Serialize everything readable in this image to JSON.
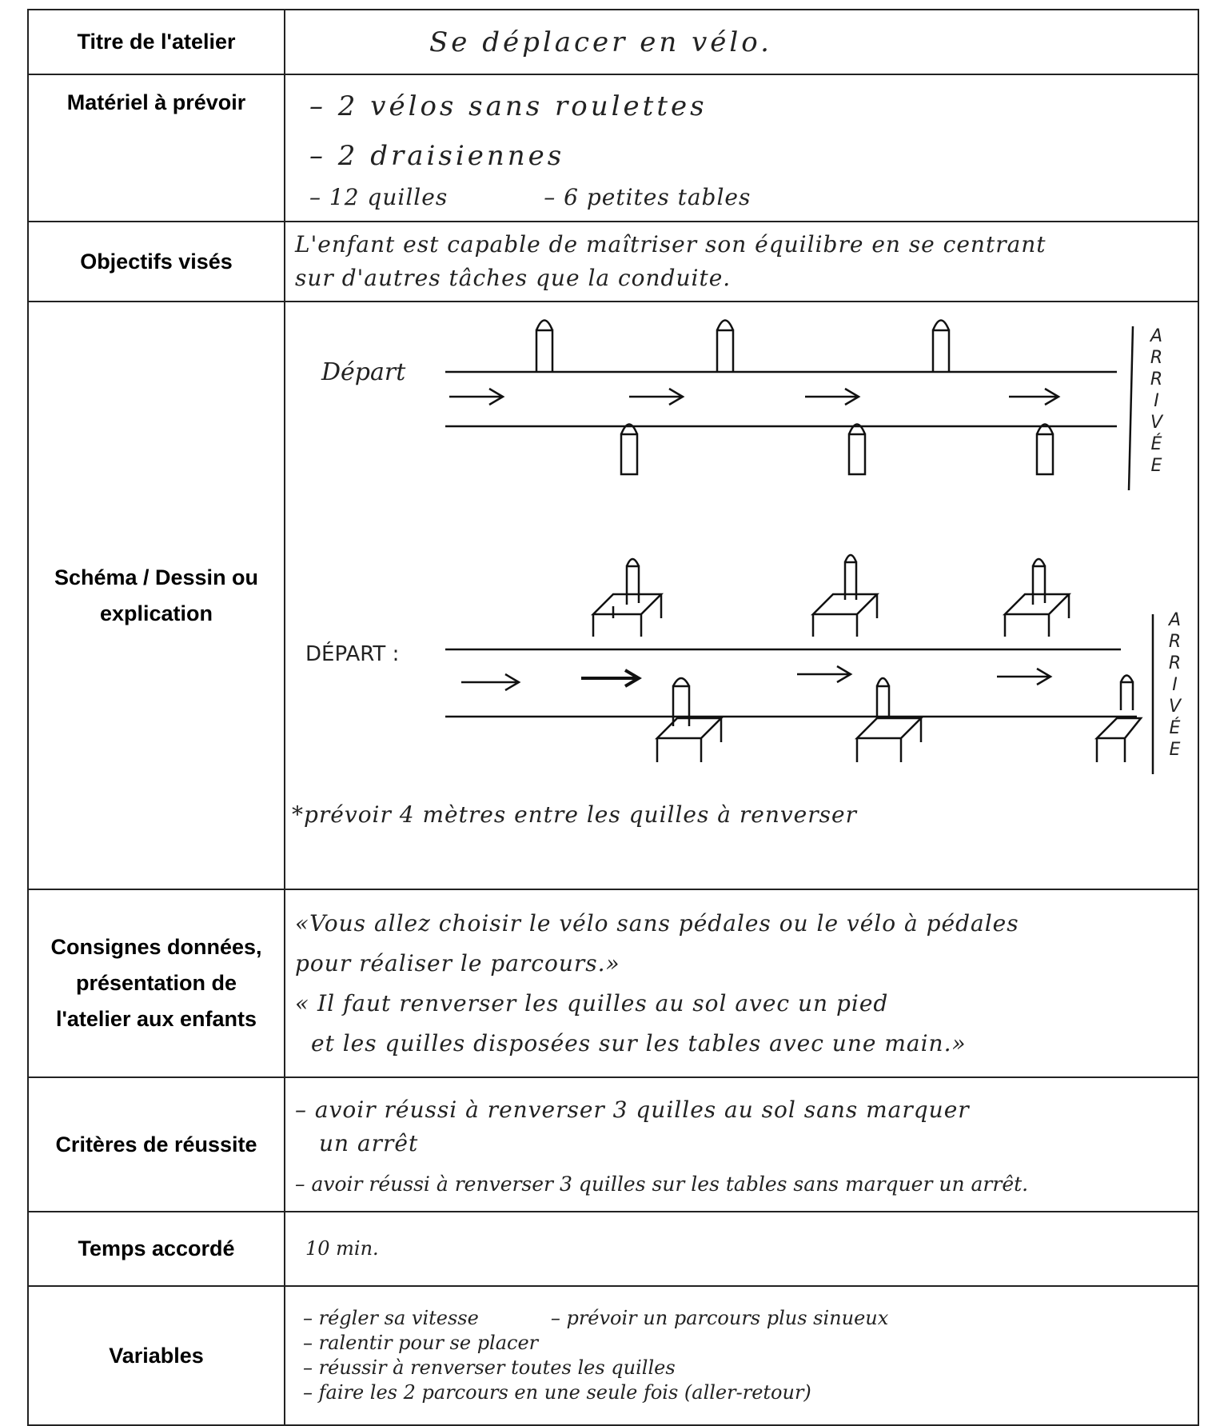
{
  "rows": [
    {
      "label": "Titre de l'atelier",
      "lines": [
        "Se déplacer en vélo."
      ]
    },
    {
      "label": "Matériel à prévoir",
      "lines": [
        "– 2 vélos sans roulettes",
        "– 2 draisiennes",
        "– 12 quilles",
        "– 6 petites tables"
      ]
    },
    {
      "label": "Objectifs visés",
      "lines": [
        "L'enfant est capable de maîtriser son équilibre en se centrant",
        "sur d'autres tâches que la conduite."
      ]
    },
    {
      "label": "Schéma / Dessin ou explication",
      "lines": [
        "*prévoir 4 mètres entre les quilles à renverser"
      ]
    },
    {
      "label": "Consignes données, présentation de l'atelier aux enfants",
      "lines": [
        "«Vous allez choisir le vélo sans pédales ou le vélo à pédales",
        "pour réaliser le parcours.»",
        "« Il faut renverser les quilles au sol avec un pied",
        "et les quilles disposées sur les tables avec une main.»"
      ]
    },
    {
      "label": "Critères de réussite",
      "lines": [
        "– avoir réussi à renverser 3 quilles au sol sans marquer",
        "un arrêt",
        "– avoir réussi à renverser 3 quilles sur les tables sans marquer un arrêt."
      ]
    },
    {
      "label": "Temps accordé",
      "lines": [
        "10 min."
      ]
    },
    {
      "label": "Variables",
      "lines": [
        "– régler sa vitesse",
        "– prévoir un parcours plus sinueux",
        "– ralentir pour se placer",
        "– réussir à renverser toutes les quilles",
        "– faire les 2 parcours en une seule fois (aller-retour)"
      ]
    }
  ],
  "schema": {
    "start_1": "Départ",
    "finish_1": "ARRIVÉE",
    "start_2": "DÉPART :",
    "finish_2": "ARRIVÉE"
  }
}
